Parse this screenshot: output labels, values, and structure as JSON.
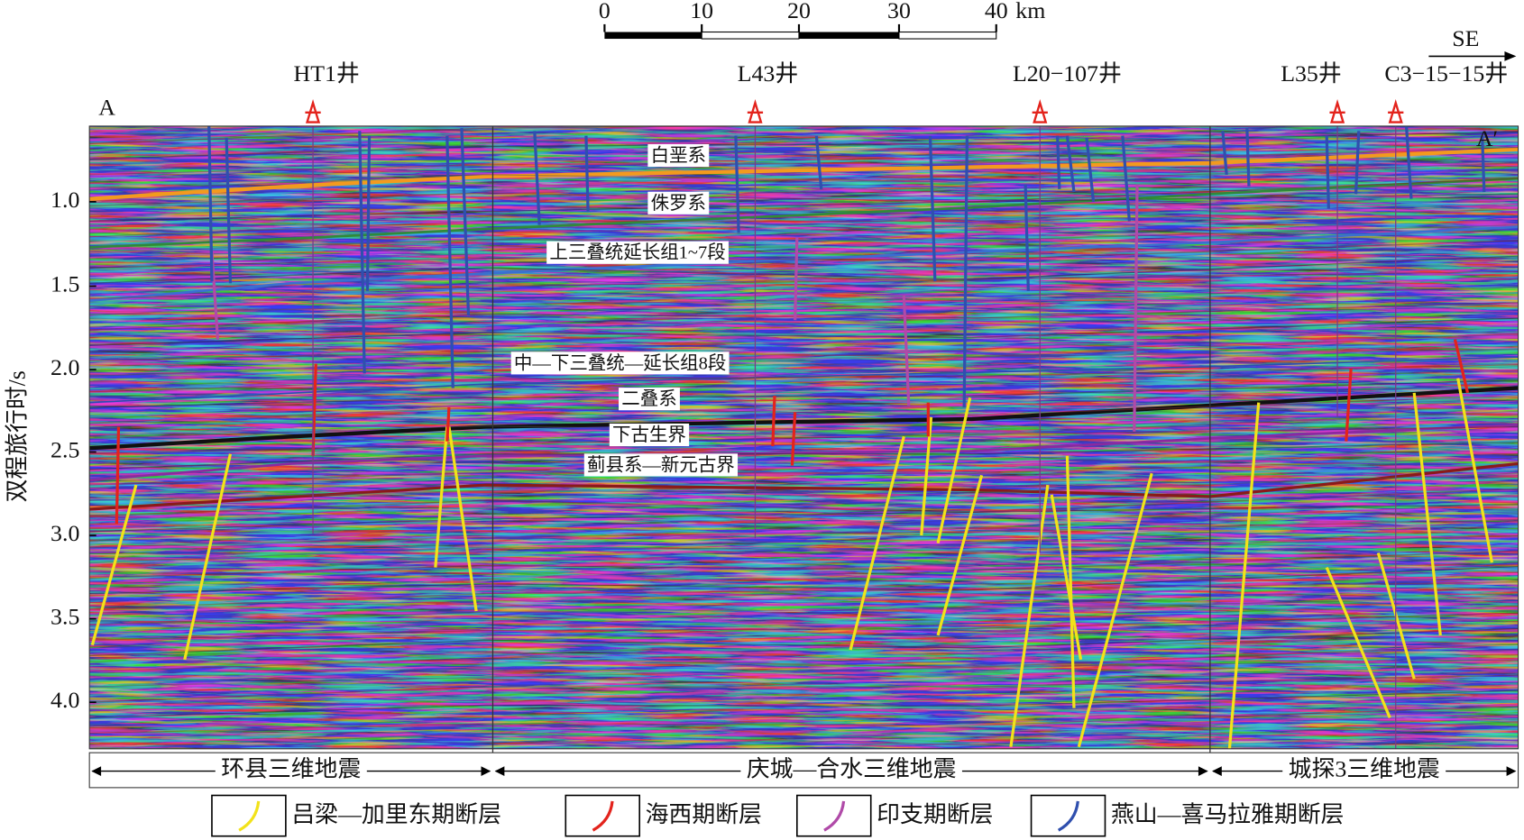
{
  "scale_bar": {
    "labels": [
      "0",
      "10",
      "20",
      "30",
      "40"
    ],
    "unit": "km"
  },
  "direction": "SE",
  "section_ends": [
    "A",
    "A′"
  ],
  "wells": [
    {
      "label": "HT1井"
    },
    {
      "label": "L43井"
    },
    {
      "label": "L20−107井"
    },
    {
      "label": "L35井"
    },
    {
      "label": "C3−15−15井"
    }
  ],
  "horizons": [
    "白垩系",
    "侏罗系",
    "上三叠统延长组1~7段",
    "中—下三叠统—延长组8段",
    "二叠系",
    "下古生界",
    "蓟县系—新元古界"
  ],
  "y_axis": {
    "label": "双程旅行时/s",
    "ticks": [
      "1.0",
      "1.5",
      "2.0",
      "2.5",
      "3.0",
      "3.5",
      "4.0"
    ]
  },
  "surveys": [
    "环县三维地震",
    "庆城—合水三维地震",
    "城探3三维地震"
  ],
  "legend": [
    "吕梁—加里东期断层",
    "海西期断层",
    "印支期断层",
    "燕山—喜马拉雅期断层"
  ]
}
